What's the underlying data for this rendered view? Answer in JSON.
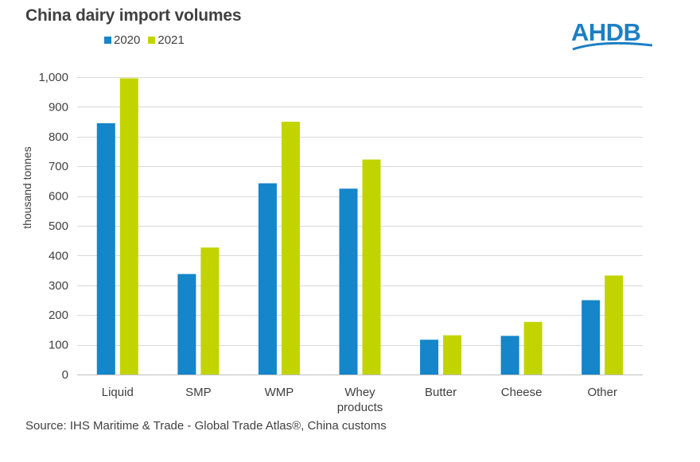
{
  "title": "China dairy import volumes",
  "logo": {
    "text": "AHDB"
  },
  "source": "Source: IHS  Maritime & Trade - Global Trade Atlas®, China customs",
  "colors": {
    "s2020": "#1486c9",
    "s2021": "#c2d400",
    "grid": "#d9d9d9",
    "axis": "#bfbfbf"
  },
  "chart_data": {
    "type": "bar",
    "title": "China dairy import volumes",
    "xlabel": "",
    "ylabel": "thousand tonnes",
    "ylim": [
      0,
      1000
    ],
    "yticks": [
      0,
      100,
      200,
      300,
      400,
      500,
      600,
      700,
      800,
      900,
      1000
    ],
    "ytick_labels": [
      "0",
      "100",
      "200",
      "300",
      "400",
      "500",
      "600",
      "700",
      "800",
      "900",
      "1,000"
    ],
    "grid": true,
    "legend": "top-left",
    "categories": [
      "Liquid",
      "SMP",
      "WMP",
      "Whey products",
      "Butter",
      "Cheese",
      "Other"
    ],
    "category_lines": [
      [
        "Liquid"
      ],
      [
        "SMP"
      ],
      [
        "WMP"
      ],
      [
        "Whey",
        "products"
      ],
      [
        "Butter"
      ],
      [
        "Cheese"
      ],
      [
        "Other"
      ]
    ],
    "series": [
      {
        "name": "2020",
        "color": "#1486c9",
        "values": [
          845,
          338,
          643,
          625,
          117,
          130,
          250
        ]
      },
      {
        "name": "2021",
        "color": "#c2d400",
        "values": [
          996,
          427,
          850,
          723,
          132,
          177,
          333
        ]
      }
    ]
  }
}
